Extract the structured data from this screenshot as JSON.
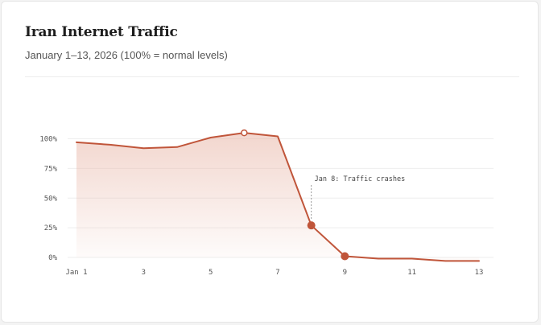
{
  "header": {
    "title": "Iran Internet Traffic",
    "subtitle": "January 1–13, 2026 (100% = normal levels)"
  },
  "colors": {
    "line": "#c0553a",
    "fill": "#e8b5a6",
    "grid": "#eeeeee",
    "background": "#ffffff"
  },
  "chart_data": {
    "type": "area",
    "title": "Iran Internet Traffic",
    "subtitle": "January 1–13, 2026 (100% = normal levels)",
    "xlabel": "",
    "ylabel": "",
    "x": [
      1,
      2,
      3,
      4,
      5,
      6,
      7,
      8,
      9,
      10,
      11,
      12,
      13
    ],
    "x_ticks": [
      "Jan 1",
      "3",
      "5",
      "7",
      "9",
      "11",
      "13"
    ],
    "x_tick_values": [
      1,
      3,
      5,
      7,
      9,
      11,
      13
    ],
    "y_ticks": [
      "0%",
      "25%",
      "50%",
      "75%",
      "100%"
    ],
    "y_tick_values": [
      0,
      25,
      50,
      75,
      100
    ],
    "ylim": [
      0,
      100
    ],
    "series": [
      {
        "values": [
          97,
          95,
          92,
          93,
          101,
          105,
          102,
          27,
          1,
          -1,
          -1,
          -3,
          -3
        ]
      }
    ],
    "highlighted_points": [
      {
        "x": 6,
        "y": 105,
        "style": "hollow"
      },
      {
        "x": 8,
        "y": 27,
        "style": "filled"
      },
      {
        "x": 9,
        "y": 1,
        "style": "filled"
      }
    ],
    "annotations": [
      {
        "x": 8,
        "text": "Jan 8: Traffic crashes"
      }
    ],
    "grid": true,
    "legend": "none"
  }
}
